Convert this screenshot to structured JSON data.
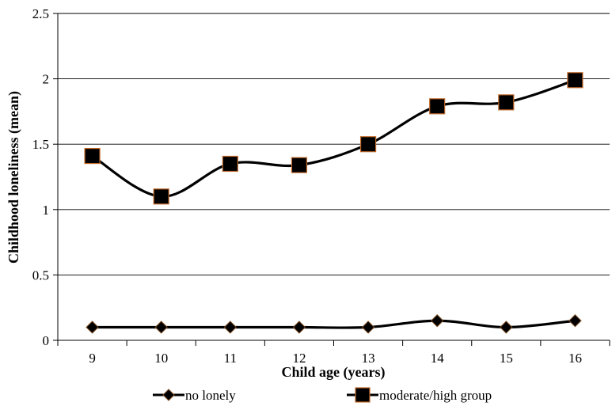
{
  "chart_data": {
    "type": "line",
    "title": "",
    "xlabel": "Child age (years)",
    "ylabel": "Childhood loneliness (mean)",
    "categories": [
      "9",
      "10",
      "11",
      "12",
      "13",
      "14",
      "15",
      "16"
    ],
    "ylim": [
      0,
      2.5
    ],
    "yticks": [
      "0",
      "0.5",
      "1",
      "1.5",
      "2",
      "2.5"
    ],
    "grid": "horizontal",
    "legend_position": "bottom",
    "series": [
      {
        "name": "no lonely",
        "marker": "diamond",
        "color": "#000000",
        "values": [
          0.1,
          0.1,
          0.1,
          0.1,
          0.1,
          0.15,
          0.1,
          0.15
        ]
      },
      {
        "name": "moderate/high group",
        "marker": "square",
        "color": "#000000",
        "marker_edge": "#c0692a",
        "values": [
          1.41,
          1.1,
          1.35,
          1.34,
          1.5,
          1.79,
          1.82,
          1.99
        ]
      }
    ]
  }
}
